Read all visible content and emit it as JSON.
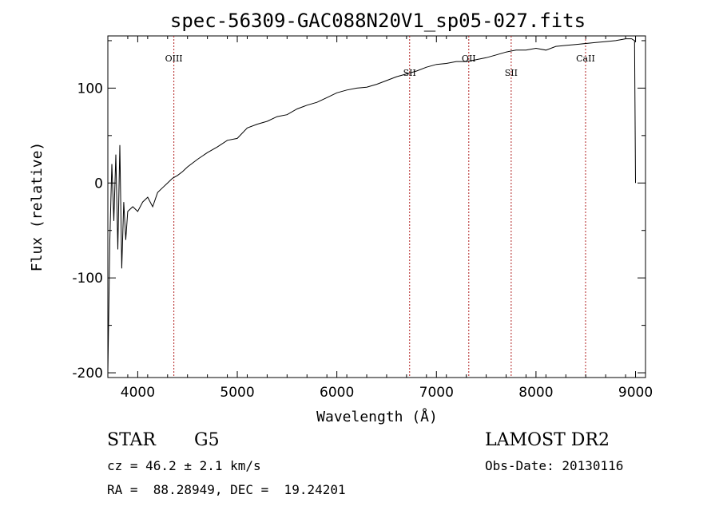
{
  "chart_data": {
    "type": "line",
    "title": "spec-56309-GAC088N20V1_sp05-027.fits",
    "xlabel": "Wavelength (Å)",
    "ylabel": "Flux (relative)",
    "xlim": [
      3700,
      9100
    ],
    "ylim": [
      -205,
      155
    ],
    "xticks": [
      4000,
      5000,
      6000,
      7000,
      8000,
      9000
    ],
    "yticks": [
      -200,
      -100,
      0,
      100
    ],
    "grid": false,
    "series": [
      {
        "x": [
          3700,
          3720,
          3740,
          3760,
          3780,
          3800,
          3820,
          3840,
          3860,
          3880,
          3900,
          3950,
          4000,
          4050,
          4100,
          4150,
          4200,
          4250,
          4300,
          4350,
          4400,
          4450,
          4500,
          4600,
          4700,
          4800,
          4900,
          5000,
          5100,
          5200,
          5300,
          5400,
          5500,
          5600,
          5700,
          5800,
          5900,
          6000,
          6100,
          6200,
          6300,
          6400,
          6500,
          6600,
          6700,
          6800,
          6900,
          7000,
          7100,
          7200,
          7300,
          7400,
          7500,
          7600,
          7700,
          7800,
          7900,
          8000,
          8100,
          8200,
          8300,
          8400,
          8500,
          8600,
          8700,
          8800,
          8900,
          8960,
          8990,
          9000
        ],
        "y": [
          -200,
          -60,
          20,
          -40,
          30,
          -70,
          40,
          -90,
          -20,
          -60,
          -30,
          -25,
          -30,
          -20,
          -15,
          -25,
          -10,
          -5,
          0,
          5,
          8,
          12,
          17,
          25,
          32,
          38,
          45,
          47,
          58,
          62,
          65,
          70,
          72,
          78,
          82,
          85,
          90,
          95,
          98,
          100,
          101,
          104,
          108,
          112,
          115,
          118,
          122,
          125,
          126,
          128,
          128,
          130,
          132,
          135,
          138,
          140,
          140,
          142,
          140,
          144,
          145,
          146,
          147,
          148,
          149,
          150,
          152,
          152,
          150,
          0
        ]
      }
    ],
    "spectral_lines": [
      {
        "name": "OIII",
        "x": 4363
      },
      {
        "name": "SII",
        "x": 6731
      },
      {
        "name": "OII",
        "x": 7325
      },
      {
        "name": "SII",
        "x": 7751
      },
      {
        "name": "CaII",
        "x": 8498
      }
    ],
    "line_color": "#000000",
    "marker_color": "#b22222"
  },
  "info": {
    "object_class": "STAR",
    "subclass": "G5",
    "survey": "LAMOST DR2",
    "cz": "cz = 46.2 ± 2.1 km/s",
    "obs_date": "Obs-Date: 20130116",
    "coords": "RA =  88.28949, DEC =  19.24201"
  }
}
